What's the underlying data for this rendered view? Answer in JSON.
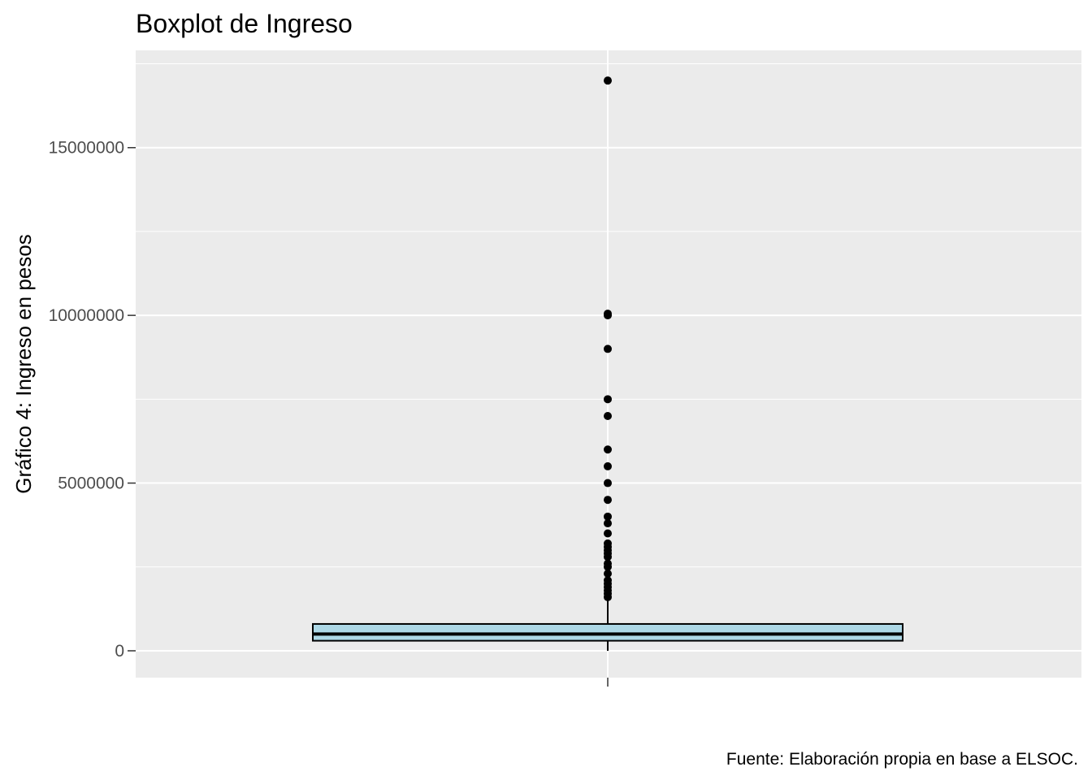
{
  "chart_data": {
    "type": "boxplot",
    "title": "Boxplot de Ingreso",
    "ylabel": "Gráfico 4: Ingreso en pesos",
    "xlabel": "",
    "caption": "Fuente: Elaboración propia en base a ELSOC.",
    "ylim": [
      -800000,
      17900000
    ],
    "y_ticks": [
      0,
      5000000,
      10000000,
      15000000
    ],
    "y_tick_labels": [
      "0",
      "5000000",
      "10000000",
      "15000000"
    ],
    "box": {
      "q1": 300000,
      "median": 500000,
      "q3": 800000,
      "whisker_low": 0,
      "whisker_high": 1550000,
      "fill": "#add8e6"
    },
    "outliers": [
      17000000,
      10050000,
      10000000,
      9000000,
      7500000,
      7000000,
      6000000,
      5500000,
      5000000,
      4500000,
      4000000,
      3800000,
      3500000,
      3200000,
      3100000,
      3000000,
      2900000,
      2800000,
      2600000,
      2500000,
      2300000,
      2100000,
      2000000,
      1900000,
      1800000,
      1700000,
      1600000
    ],
    "colors": {
      "panel": "#ebebeb",
      "grid": "#ffffff",
      "box_fill": "#add8e6",
      "line": "#000000",
      "axis_text": "#4d4d4d"
    }
  }
}
